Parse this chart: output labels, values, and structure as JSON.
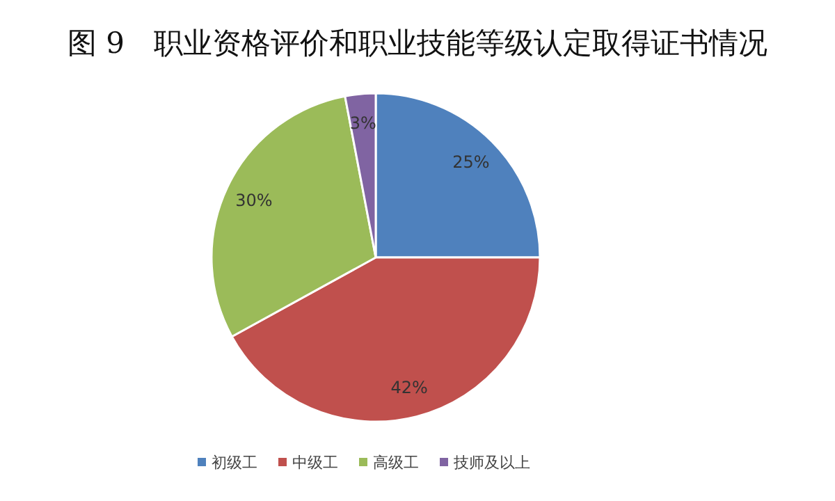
{
  "chart_data": {
    "type": "pie",
    "title": "图 9　职业资格评价和职业技能等级认定取得证书情况",
    "categories": [
      "初级工",
      "中级工",
      "高级工",
      "技师及以上"
    ],
    "values": [
      25,
      42,
      30,
      3
    ],
    "value_labels": [
      "25%",
      "42%",
      "30%",
      "3%"
    ],
    "colors": [
      "#4f81bd",
      "#c0504d",
      "#9bbb59",
      "#8064a2"
    ],
    "legend": "bottom"
  }
}
